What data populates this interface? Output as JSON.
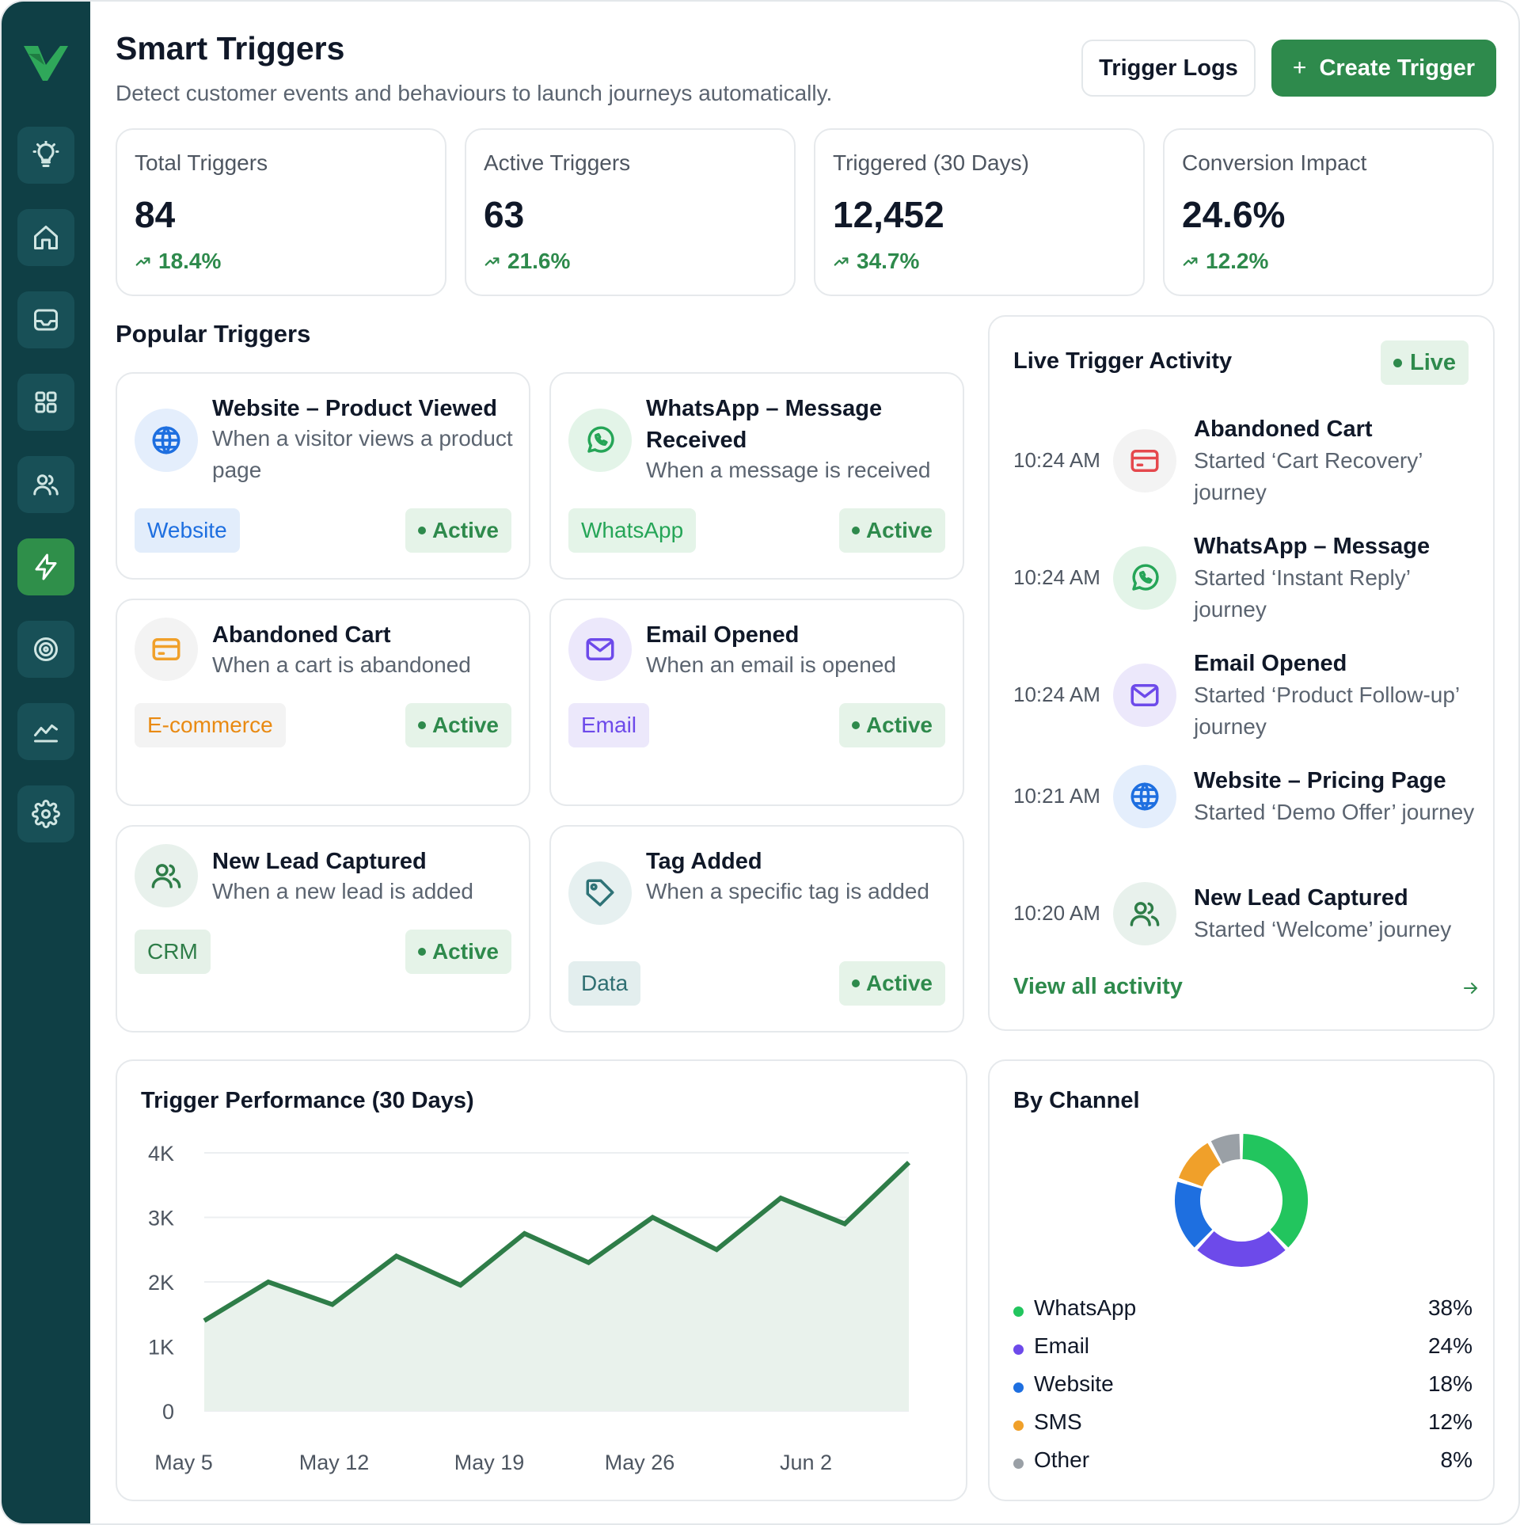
{
  "header": {
    "title": "Smart Triggers",
    "subtitle": "Detect customer events and behaviours to launch journeys automatically.",
    "logs_label": "Trigger Logs",
    "create_label": "Create Trigger"
  },
  "sidebar": {
    "items": [
      {
        "icon": "bulb-icon"
      },
      {
        "icon": "home-icon"
      },
      {
        "icon": "inbox-icon"
      },
      {
        "icon": "grid-icon"
      },
      {
        "icon": "users-icon"
      },
      {
        "icon": "lightning-icon",
        "active": true
      },
      {
        "icon": "target-icon"
      },
      {
        "icon": "chart-icon"
      },
      {
        "icon": "gear-icon"
      }
    ]
  },
  "stats": [
    {
      "label": "Total Triggers",
      "value": "84",
      "change": "18.4%"
    },
    {
      "label": "Active Triggers",
      "value": "63",
      "change": "21.6%"
    },
    {
      "label": "Triggered (30 Days)",
      "value": "12,452",
      "change": "34.7%"
    },
    {
      "label": "Conversion Impact",
      "value": "24.6%",
      "change": "12.2%"
    }
  ],
  "popular": {
    "title": "Popular Triggers",
    "cards": [
      {
        "title": "Website – Product Viewed",
        "desc": "When a visitor views a product page",
        "tag": "Website",
        "status": "Active",
        "icon": "globe-icon"
      },
      {
        "title": "WhatsApp – Message Received",
        "desc": "When a message is received",
        "tag": "WhatsApp",
        "status": "Active",
        "icon": "whatsapp-icon"
      },
      {
        "title": "Abandoned Cart",
        "desc": "When a cart is abandoned",
        "tag": "E-commerce",
        "status": "Active",
        "icon": "card-icon"
      },
      {
        "title": "Email Opened",
        "desc": "When an email is opened",
        "tag": "Email",
        "status": "Active",
        "icon": "mail-icon"
      },
      {
        "title": "New Lead Captured",
        "desc": "When a new lead is added",
        "tag": "CRM",
        "status": "Active",
        "icon": "users-icon"
      },
      {
        "title": "Tag Added",
        "desc": "When a specific tag is added",
        "tag": "Data",
        "status": "Active",
        "icon": "tag-icon"
      }
    ]
  },
  "live": {
    "title": "Live Trigger Activity",
    "badge": "Live",
    "items": [
      {
        "time": "10:24 AM",
        "title": "Abandoned Cart",
        "desc": "Started ‘Cart Recovery’ journey",
        "icon": "card-icon"
      },
      {
        "time": "10:24 AM",
        "title": "WhatsApp – Message",
        "desc": "Started ‘Instant Reply’ journey",
        "icon": "whatsapp-icon"
      },
      {
        "time": "10:24 AM",
        "title": "Email Opened",
        "desc": "Started ‘Product Follow-up’ journey",
        "icon": "mail-icon"
      },
      {
        "time": "10:21 AM",
        "title": "Website – Pricing Page",
        "desc": "Started ‘Demo Offer’ journey",
        "icon": "globe-icon"
      },
      {
        "time": "10:20 AM",
        "title": "New Lead Captured",
        "desc": "Started ‘Welcome’ journey",
        "icon": "users-icon"
      }
    ],
    "view_all": "View all activity"
  },
  "chart": {
    "title": "Trigger Performance (30 Days)"
  },
  "chart_data": [
    {
      "type": "area",
      "title": "Trigger Performance (30 Days)",
      "y_ticks": [
        "4K",
        "3K",
        "2K",
        "1K",
        "0"
      ],
      "x_ticks": [
        "May 5",
        "May 12",
        "May 19",
        "May 26",
        "Jun 2"
      ],
      "ylim": [
        0,
        4000
      ],
      "series": [
        {
          "values": [
            1400,
            2000,
            1650,
            2400,
            1950,
            2750,
            2300,
            3000,
            2500,
            3300,
            2900,
            3850
          ]
        }
      ],
      "colors": {
        "line": "#2e7d48",
        "fill": "#e9f2ec"
      },
      "grid": true
    },
    {
      "type": "pie",
      "title": "By Channel",
      "categories": [
        "WhatsApp",
        "Email",
        "Website",
        "SMS",
        "Other"
      ],
      "values": [
        38,
        24,
        18,
        12,
        8
      ],
      "labels": [
        "38%",
        "24%",
        "18%",
        "12%",
        "8%"
      ],
      "colors": [
        "#22c55e",
        "#6d4aea",
        "#1e6fe0",
        "#f0a02a",
        "#9aa0a6"
      ],
      "donut": true
    }
  ],
  "colors": {
    "brand": "#2e8a4c",
    "sidebar": "#0f3f45"
  }
}
